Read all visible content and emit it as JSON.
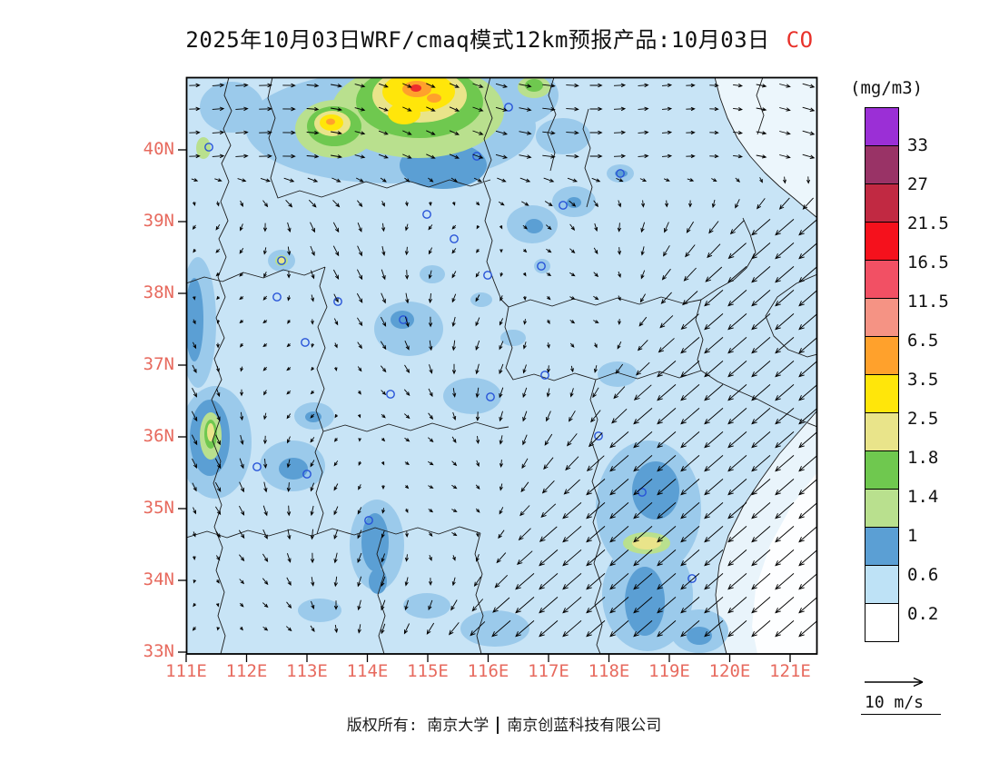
{
  "title": {
    "text": "2025年10月03日WRF/cmaq模式12km预报产品:10月03日",
    "pollutant": "CO",
    "pollutant_color": "#E8312A"
  },
  "axes": {
    "lat_labels": [
      "40N",
      "39N",
      "38N",
      "37N",
      "36N",
      "35N",
      "34N",
      "33N"
    ],
    "lon_labels": [
      "111E",
      "112E",
      "113E",
      "114E",
      "115E",
      "116E",
      "117E",
      "118E",
      "119E",
      "120E",
      "121E"
    ],
    "label_color": "#E76A5E"
  },
  "legend": {
    "title": "(mg/m3)",
    "levels": [
      "33",
      "27",
      "21.5",
      "16.5",
      "11.5",
      "6.5",
      "3.5",
      "2.5",
      "1.8",
      "1.4",
      "1",
      "0.6",
      "0.2"
    ],
    "colors_top_to_bottom": [
      "#9B2FD6",
      "#993366",
      "#C12942",
      "#F5111C",
      "#F25064",
      "#F59384",
      "#FFA12C",
      "#FFE60A",
      "#E9E48A",
      "#6FC84F",
      "#B9E08E",
      "#5B9FD4",
      "#BEE2F6",
      "#FFFFFF"
    ]
  },
  "wind_scale": {
    "label": "10 m/s"
  },
  "footer": {
    "left": "版权所有: 南京大学",
    "right": "南京创蓝科技有限公司"
  },
  "chart_data": {
    "type": "heatmap",
    "title": "2025年10月03日WRF/cmaq模式12km预报产品:10月03日 CO",
    "variable": "CO",
    "units": "mg/m3",
    "x": {
      "label": "longitude",
      "ticks": [
        "111E",
        "112E",
        "113E",
        "114E",
        "115E",
        "116E",
        "117E",
        "118E",
        "119E",
        "120E",
        "121E"
      ],
      "range": [
        111,
        121.5
      ]
    },
    "y": {
      "label": "latitude",
      "ticks": [
        "40N",
        "39N",
        "38N",
        "37N",
        "36N",
        "35N",
        "34N",
        "33N"
      ],
      "range": [
        33,
        41
      ]
    },
    "levels_mg_m3": [
      0.2,
      0.6,
      1,
      1.4,
      1.8,
      2.5,
      3.5,
      6.5,
      11.5,
      16.5,
      21.5,
      27,
      33
    ],
    "palette_low_to_high": [
      "#FFFFFF",
      "#BEE2F6",
      "#5B9FD4",
      "#B9E08E",
      "#6FC84F",
      "#E9E48A",
      "#FFE60A",
      "#FFA12C",
      "#F59384",
      "#F25064",
      "#F5111C",
      "#C12942",
      "#993366",
      "#9B2FD6"
    ],
    "background_range_mg_m3": "0.2-0.6",
    "wind_reference_m_s": 10,
    "features": [
      {
        "desc": "main hotspot reaching yellow/orange/red core (2.5 to >11.5 mg/m3) around 114.5-115.5E near 41N at top edge"
      },
      {
        "desc": "secondary green-yellow hotspot (1.4-3.5) around 113.4E 40.7N"
      },
      {
        "desc": "small elevated spot (1-2.5) around 112.4E 36.2N and 112.6E 38.5N"
      },
      {
        "desc": "elevated blue band (0.6-1.4) along 118.5-119.5E from 33.5N to 36N with khaki spot (1.8-2.5) near 118.7E 34.6N"
      },
      {
        "desc": "elevated blue patch (0.6-1.4) around 114E 34-35N"
      },
      {
        "desc": "clean area (<0.2) over the sea in the southeast corner; pale area over Bohai in northeast corner"
      },
      {
        "desc": "strong northeasterly winds (~10 m/s) over the southeastern sea, weak variable winds inland, westerlies along the northern edge"
      }
    ]
  }
}
